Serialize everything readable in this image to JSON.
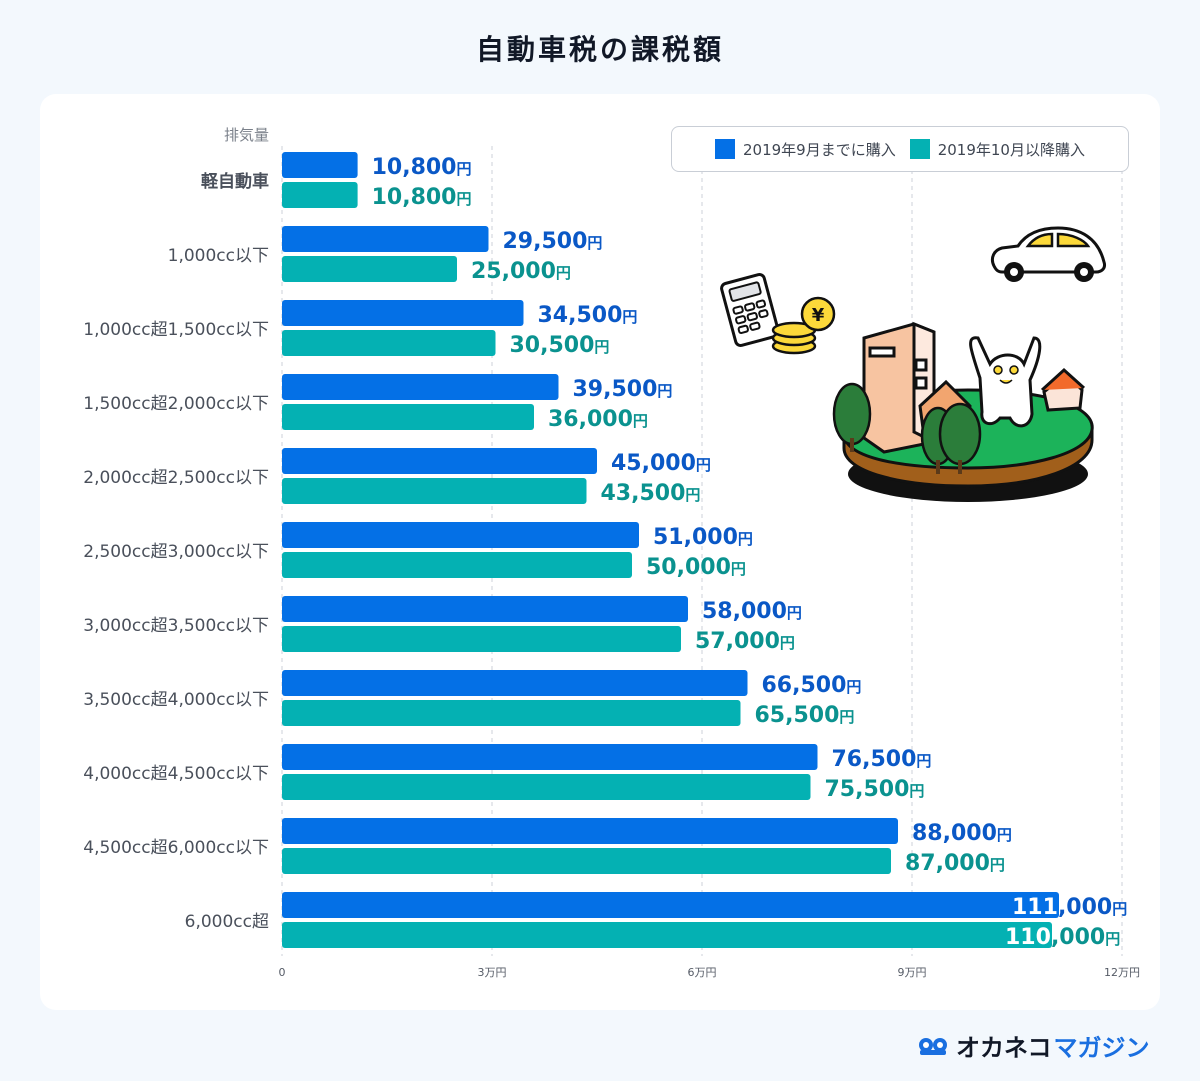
{
  "title": "自動車税の課税額",
  "legend": {
    "series1": "2019年9月までに購入",
    "series2": "2019年10月以降購入"
  },
  "colors": {
    "series1": "#0470e6",
    "series2": "#04b1b3",
    "label1": "#0a58c6",
    "label2": "#0a928f",
    "grid": "#d5d9df",
    "axis_text": "#555b66",
    "category_text": "#4a505b"
  },
  "logo": {
    "icon": "owl-eyes-icon",
    "text_dark": "オカネコ",
    "text_blue": "マガジン"
  },
  "illustrations": [
    "calculator-coins-icon",
    "car-icon",
    "cat-town-island-icon"
  ],
  "chart_data": {
    "type": "bar",
    "orientation": "horizontal",
    "title": "自動車税の課税額",
    "ylabel": "排気量",
    "xlabel": "",
    "unit_suffix": "円",
    "categories": [
      "軽自動車",
      "1,000cc以下",
      "1,000cc超1,500cc以下",
      "1,500cc超2,000cc以下",
      "2,000cc超2,500cc以下",
      "2,500cc超3,000cc以下",
      "3,000cc超3,500cc以下",
      "3,500cc超4,000cc以下",
      "4,000cc超4,500cc以下",
      "4,500cc超6,000cc以下",
      "6,000cc超"
    ],
    "series": [
      {
        "name": "2019年9月までに購入",
        "values": [
          10800,
          29500,
          34500,
          39500,
          45000,
          51000,
          58000,
          66500,
          76500,
          88000,
          111000
        ],
        "labels": [
          "10,800",
          "29,500",
          "34,500",
          "39,500",
          "45,000",
          "51,000",
          "58,000",
          "66,500",
          "76,500",
          "88,000",
          "111,000"
        ]
      },
      {
        "name": "2019年10月以降購入",
        "values": [
          10800,
          25000,
          30500,
          36000,
          43500,
          50000,
          57000,
          65500,
          75500,
          87000,
          110000
        ],
        "labels": [
          "10,800",
          "25,000",
          "30,500",
          "36,000",
          "43,500",
          "50,000",
          "57,000",
          "65,500",
          "75,500",
          "87,000",
          "110,000"
        ]
      }
    ],
    "xlim": [
      0,
      120000
    ],
    "xticks": [
      0,
      30000,
      60000,
      90000,
      120000
    ],
    "xtick_labels": [
      "0",
      "3万円",
      "6万円",
      "9万円",
      "12万円"
    ],
    "grid": true,
    "legend_position": "top-right"
  }
}
